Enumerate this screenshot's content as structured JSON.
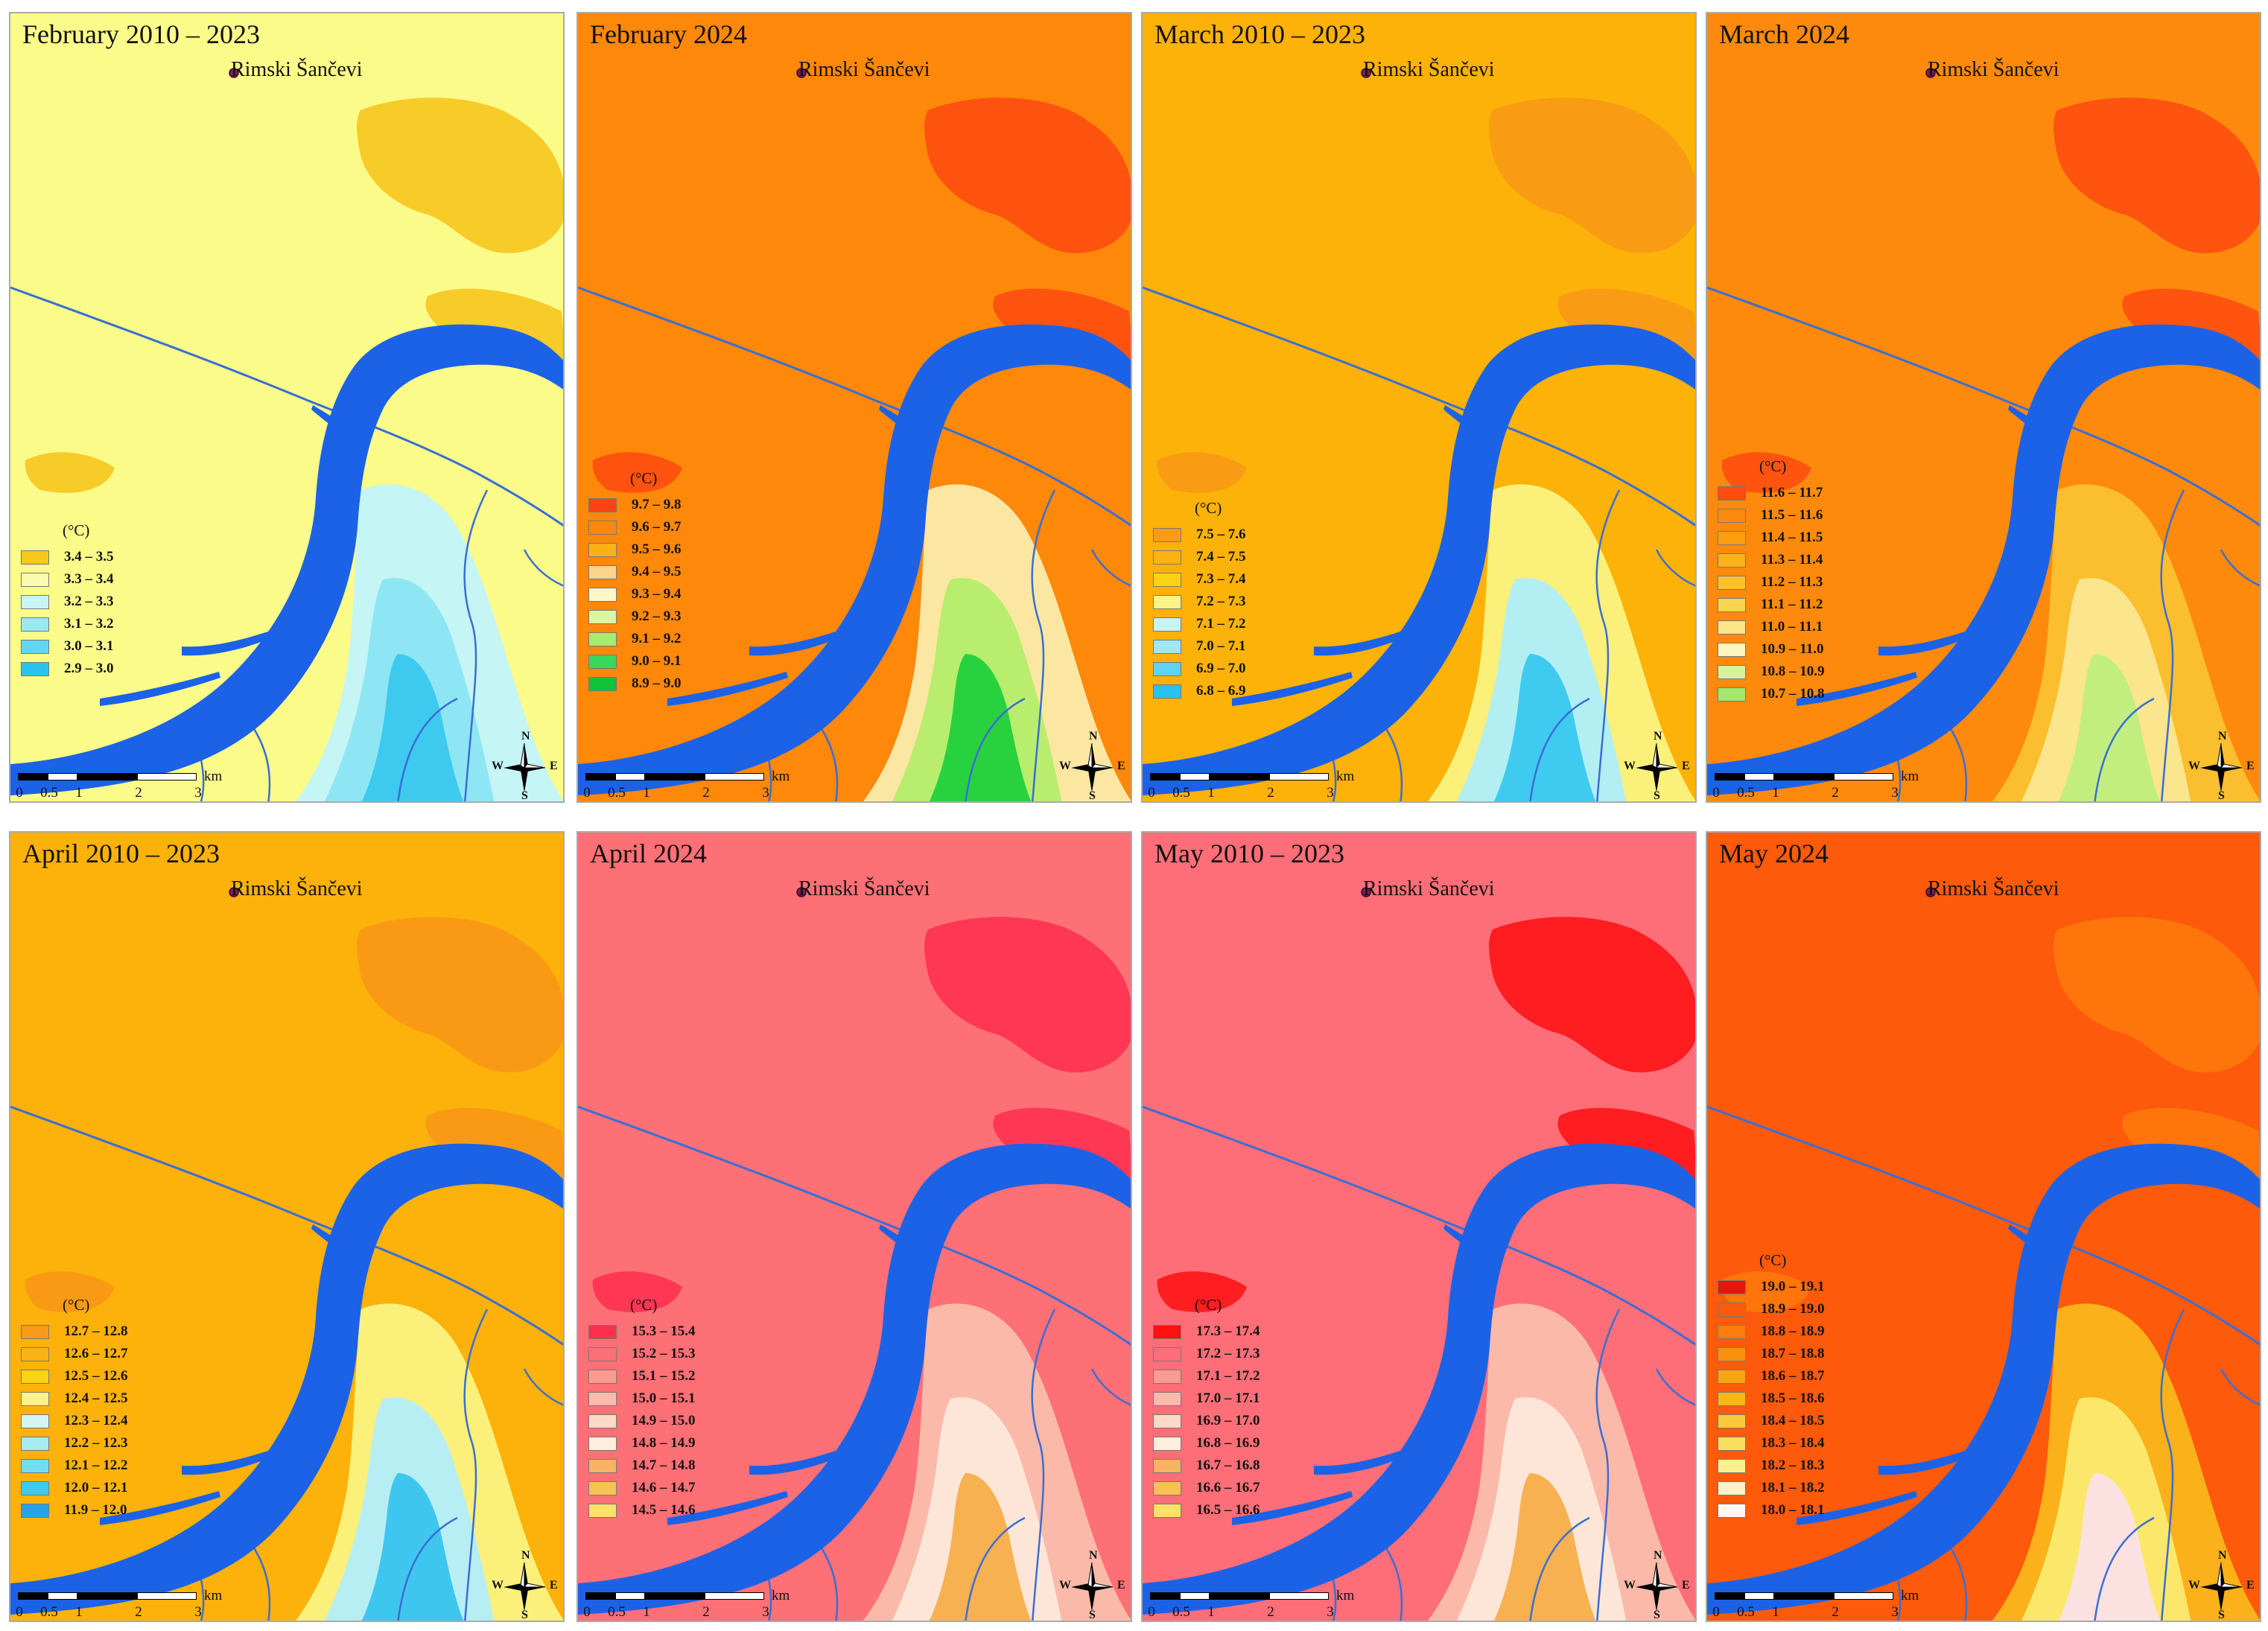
{
  "place_label": "Rimski Šančevi",
  "unit": "(°C)",
  "scale": {
    "ticks": [
      "0",
      "0.5",
      "1",
      "2",
      "3"
    ],
    "unit": "km"
  },
  "compass": {
    "n": "N",
    "s": "S",
    "e": "E",
    "w": "W"
  },
  "colors": {
    "river": "#1c62e6",
    "stream": "#3a6ed4"
  },
  "panels": [
    {
      "title": "February 2010 – 2023",
      "base": "#fbfb8a",
      "hot": "#f7c316",
      "cool": [
        "#c5f5f5",
        "#8ee6f4",
        "#3ec9ef"
      ],
      "legend": [
        {
          "label": "3.4 – 3.5",
          "color": "#f8c91b"
        },
        {
          "label": "3.3 – 3.4",
          "color": "#fbfbb0"
        },
        {
          "label": "3.2 – 3.3",
          "color": "#c7f4f6"
        },
        {
          "label": "3.1 – 3.2",
          "color": "#99e9f4"
        },
        {
          "label": "3.0 – 3.1",
          "color": "#63d6f2"
        },
        {
          "label": "2.9 – 3.0",
          "color": "#2bc3ef"
        }
      ]
    },
    {
      "title": "February 2024",
      "base": "#fd880a",
      "hot": "#fe4a10",
      "cool": [
        "#fbe7a2",
        "#b9ed6e",
        "#28d23f"
      ],
      "legend": [
        {
          "label": "9.7 – 9.8",
          "color": "#fe4310"
        },
        {
          "label": "9.6 – 9.7",
          "color": "#fd880a"
        },
        {
          "label": "9.5 – 9.6",
          "color": "#fbb116"
        },
        {
          "label": "9.4 – 9.5",
          "color": "#fbd48a"
        },
        {
          "label": "9.3 – 9.4",
          "color": "#fdf6c6"
        },
        {
          "label": "9.2 – 9.3",
          "color": "#dcf5a1"
        },
        {
          "label": "9.1 – 9.2",
          "color": "#a9ea6f"
        },
        {
          "label": "9.0 – 9.1",
          "color": "#38d85a"
        },
        {
          "label": "8.9 – 9.0",
          "color": "#12c23a"
        }
      ]
    },
    {
      "title": "March 2010 – 2023",
      "base": "#fcb208",
      "hot": "#f99716",
      "cool": [
        "#fbf07a",
        "#b3eef3",
        "#3fcbef"
      ],
      "legend": [
        {
          "label": "7.5 – 7.6",
          "color": "#f99a1b"
        },
        {
          "label": "7.4 – 7.5",
          "color": "#fbb414"
        },
        {
          "label": "7.3 – 7.4",
          "color": "#fbd313"
        },
        {
          "label": "7.2 – 7.3",
          "color": "#fbf38a"
        },
        {
          "label": "7.1 – 7.2",
          "color": "#c9f3f3"
        },
        {
          "label": "7.0 – 7.1",
          "color": "#9ee8f2"
        },
        {
          "label": "6.9 – 7.0",
          "color": "#5ed4f0"
        },
        {
          "label": "6.8 – 6.9",
          "color": "#28c2ee"
        }
      ]
    },
    {
      "title": "March 2024",
      "base": "#fd8a0c",
      "hot": "#fe4a12",
      "cool": [
        "#fbbe2e",
        "#fbe58d",
        "#c1ee7f"
      ],
      "legend": [
        {
          "label": "11.6 – 11.7",
          "color": "#fe4c12"
        },
        {
          "label": "11.5 – 11.6",
          "color": "#fd8a0c"
        },
        {
          "label": "11.4 – 11.5",
          "color": "#fb9e12"
        },
        {
          "label": "11.3 – 11.4",
          "color": "#fbb11a"
        },
        {
          "label": "11.2 – 11.3",
          "color": "#fbc22e"
        },
        {
          "label": "11.1 – 11.2",
          "color": "#fbd44e"
        },
        {
          "label": "11.0 – 11.1",
          "color": "#fbe68a"
        },
        {
          "label": "10.9 – 11.0",
          "color": "#fdf4be"
        },
        {
          "label": "10.8 – 10.9",
          "color": "#d6f29a"
        },
        {
          "label": "10.7 – 10.8",
          "color": "#a3e86a"
        }
      ]
    },
    {
      "title": "April 2010 – 2023",
      "base": "#fcb20a",
      "hot": "#f99516",
      "cool": [
        "#fbf07a",
        "#b7eef3",
        "#3fc6ef"
      ],
      "legend": [
        {
          "label": "12.7 – 12.8",
          "color": "#f99a1b"
        },
        {
          "label": "12.6 – 12.7",
          "color": "#fbb414"
        },
        {
          "label": "12.5 – 12.6",
          "color": "#fbd313"
        },
        {
          "label": "12.4 – 12.5",
          "color": "#fbf38a"
        },
        {
          "label": "12.3 – 12.4",
          "color": "#d4f5f3"
        },
        {
          "label": "12.2 – 12.3",
          "color": "#a8ebf3"
        },
        {
          "label": "12.1 – 12.2",
          "color": "#74dcf1"
        },
        {
          "label": "12.0 – 12.1",
          "color": "#3fcaef"
        },
        {
          "label": "11.9 – 12.0",
          "color": "#2aa0e6"
        }
      ]
    },
    {
      "title": "April 2024",
      "base": "#fd7076",
      "hot": "#fe2d50",
      "cool": [
        "#fbb9a9",
        "#fde6d8",
        "#f8b150"
      ],
      "legend": [
        {
          "label": "15.3 – 15.4",
          "color": "#fe3050"
        },
        {
          "label": "15.2 – 15.3",
          "color": "#fd7078"
        },
        {
          "label": "15.1 – 15.2",
          "color": "#fc9c90"
        },
        {
          "label": "15.0 – 15.1",
          "color": "#fcbbaa"
        },
        {
          "label": "14.9 – 15.0",
          "color": "#fdd9c6"
        },
        {
          "label": "14.8 – 14.9",
          "color": "#fdeede"
        },
        {
          "label": "14.7 – 14.8",
          "color": "#f9b364"
        },
        {
          "label": "14.6 – 14.7",
          "color": "#f9c154"
        },
        {
          "label": "14.5 – 14.6",
          "color": "#fbe06a"
        }
      ]
    },
    {
      "title": "May 2010 – 2023",
      "base": "#fd6e78",
      "hot": "#fe0f12",
      "cool": [
        "#fbb9a9",
        "#fde6d8",
        "#f8b150"
      ],
      "legend": [
        {
          "label": "17.3 – 17.4",
          "color": "#fe1010"
        },
        {
          "label": "17.2 – 17.3",
          "color": "#fd6e78"
        },
        {
          "label": "17.1 – 17.2",
          "color": "#fc9b90"
        },
        {
          "label": "17.0 – 17.1",
          "color": "#fcbbaa"
        },
        {
          "label": "16.9 – 17.0",
          "color": "#fdd9c6"
        },
        {
          "label": "16.8 – 16.9",
          "color": "#fdeede"
        },
        {
          "label": "16.7 – 16.8",
          "color": "#f9b364"
        },
        {
          "label": "16.6 – 16.7",
          "color": "#f9c154"
        },
        {
          "label": "16.5 – 16.6",
          "color": "#fbe06a"
        }
      ]
    },
    {
      "title": "May 2024",
      "base": "#fd5a0c",
      "hot": "#fd7a0c",
      "cool": [
        "#fbb11a",
        "#fbe86a",
        "#fbe2e0"
      ],
      "legend": [
        {
          "label": "19.0 – 19.1",
          "color": "#e0180c"
        },
        {
          "label": "18.9 – 19.0",
          "color": "#fd5a0c"
        },
        {
          "label": "18.8 – 18.9",
          "color": "#fd7c0c"
        },
        {
          "label": "18.7 – 18.8",
          "color": "#fb920e"
        },
        {
          "label": "18.6 – 18.7",
          "color": "#fba412"
        },
        {
          "label": "18.5 – 18.6",
          "color": "#fbb716"
        },
        {
          "label": "18.4 – 18.5",
          "color": "#fbca3a"
        },
        {
          "label": "18.3 – 18.4",
          "color": "#fbde5e"
        },
        {
          "label": "18.2 – 18.3",
          "color": "#fbf08e"
        },
        {
          "label": "18.1 – 18.2",
          "color": "#fdf3c6"
        },
        {
          "label": "18.0 – 18.1",
          "color": "#fdf7f0"
        }
      ]
    }
  ]
}
